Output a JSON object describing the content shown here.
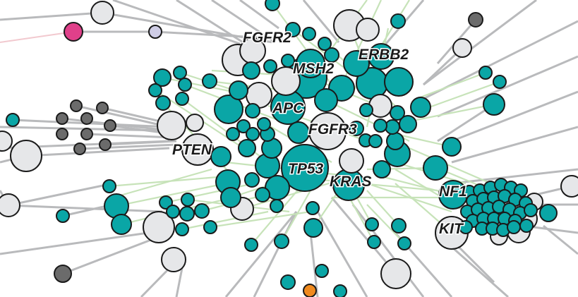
{
  "network": {
    "colors": {
      "mutated_gene": "#0aa6a6",
      "other_gene": "#e6e7e9",
      "dark_node": "#6b6b6b",
      "magenta_node": "#e0408a",
      "lavender_node": "#cfcde6",
      "orange_node": "#f08a1e",
      "gray_edge": "#b9babc",
      "green_edge": "#c7e3b9"
    },
    "labels": {
      "fgfr2": "FGFR2",
      "erbb2": "ERBB2",
      "msh2": "MSH2",
      "apc": "APC",
      "fgfr3": "FGFR3",
      "pten": "PTEN",
      "tp53": "TP53",
      "kras": "KRAS",
      "nf1": "NF1",
      "kit": "KIT"
    }
  }
}
